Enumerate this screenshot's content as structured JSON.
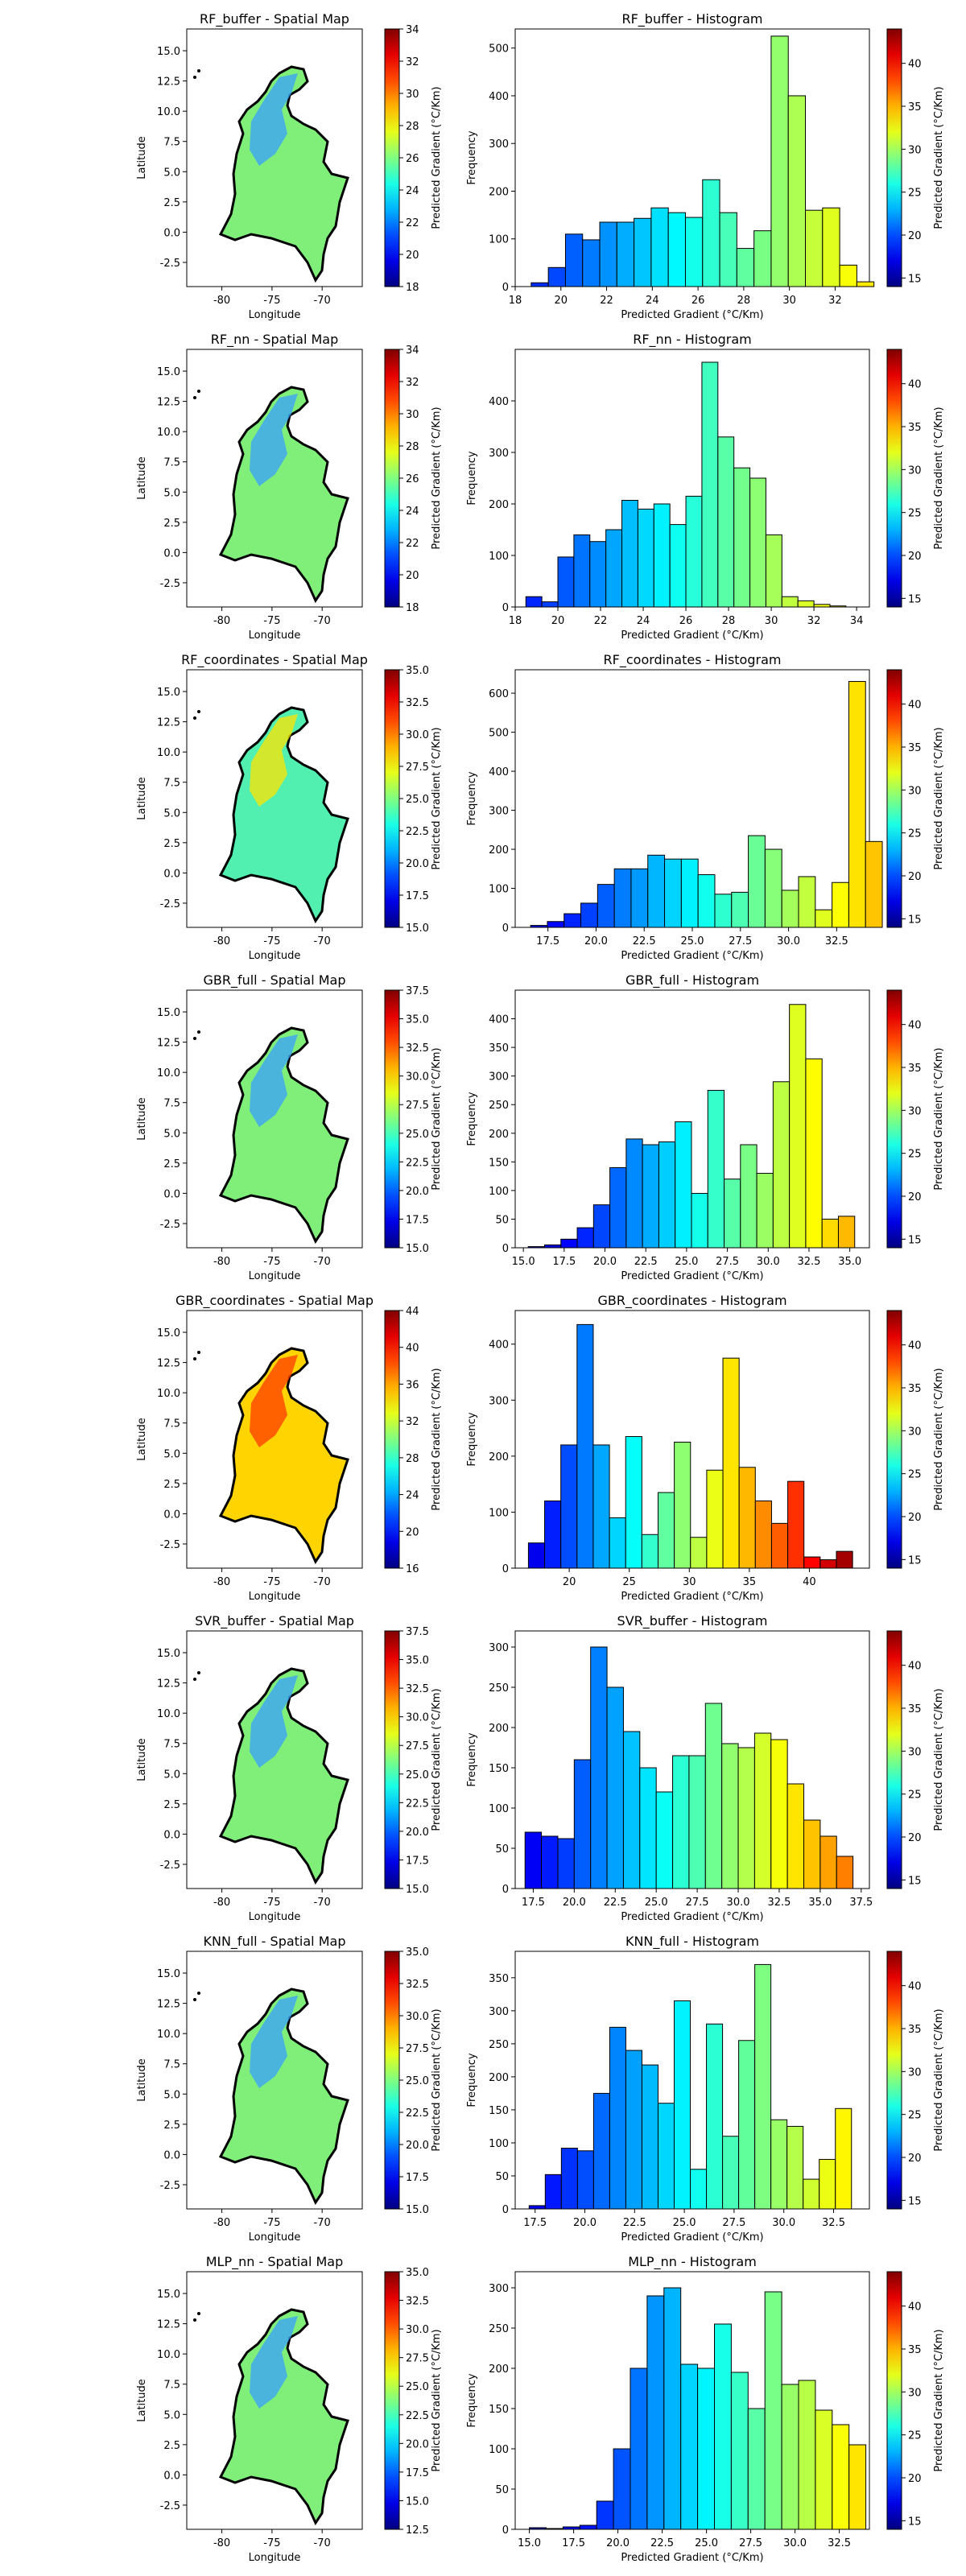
{
  "chart_data": [
    {
      "type": "heatmap",
      "title": "RF_buffer - Spatial Map",
      "xlabel": "Longitude",
      "ylabel": "Latitude",
      "xticks": [
        "-80",
        "-75",
        "-70"
      ],
      "yticks": [
        "-2.5",
        "0.0",
        "2.5",
        "5.0",
        "7.5",
        "10.0",
        "12.5",
        "15.0"
      ],
      "colorbar": {
        "label": "Predicted Gradient (°C/Km)",
        "ticks": [
          "18",
          "20",
          "22",
          "24",
          "26",
          "28",
          "30",
          "32",
          "34"
        ],
        "range": [
          18,
          34
        ]
      },
      "dominant_color": "#7fef7a",
      "secondary_color": "#3aa0ff"
    },
    {
      "type": "bar",
      "title": "RF_buffer - Histogram",
      "xlabel": "Predicted Gradient (°C/Km)",
      "ylabel": "Frequency",
      "xlim": [
        18,
        33.5
      ],
      "ylim": [
        0,
        540
      ],
      "xticks": [
        "18",
        "20",
        "22",
        "24",
        "26",
        "28",
        "30",
        "32"
      ],
      "yticks": [
        "0",
        "100",
        "200",
        "300",
        "400",
        "500"
      ],
      "bin_start": 18.7,
      "bin_width": 0.75,
      "values": [
        8,
        40,
        110,
        98,
        135,
        135,
        143,
        165,
        155,
        145,
        224,
        155,
        80,
        117,
        525,
        400,
        160,
        165,
        45,
        10
      ],
      "colorbar": {
        "label": "Predicted Gradient (°C/Km)",
        "ticks": [
          "15",
          "20",
          "25",
          "30",
          "35",
          "40"
        ],
        "range": [
          14,
          44
        ]
      }
    },
    {
      "type": "heatmap",
      "title": "RF_nn - Spatial Map",
      "xlabel": "Longitude",
      "ylabel": "Latitude",
      "xticks": [
        "-80",
        "-75",
        "-70"
      ],
      "yticks": [
        "-2.5",
        "0.0",
        "2.5",
        "5.0",
        "7.5",
        "10.0",
        "12.5",
        "15.0"
      ],
      "colorbar": {
        "label": "Predicted Gradient (°C/Km)",
        "ticks": [
          "18",
          "20",
          "22",
          "24",
          "26",
          "28",
          "30",
          "32",
          "34"
        ],
        "range": [
          18,
          34
        ]
      },
      "dominant_color": "#7fef7a",
      "secondary_color": "#3aa0ff"
    },
    {
      "type": "bar",
      "title": "RF_nn - Histogram",
      "xlabel": "Predicted Gradient (°C/Km)",
      "ylabel": "Frequency",
      "xlim": [
        18,
        34.6
      ],
      "ylim": [
        0,
        500
      ],
      "xticks": [
        "18",
        "20",
        "22",
        "24",
        "26",
        "28",
        "30",
        "32",
        "34"
      ],
      "yticks": [
        "0",
        "100",
        "200",
        "300",
        "400"
      ],
      "bin_start": 18.5,
      "bin_width": 0.75,
      "values": [
        20,
        10,
        97,
        140,
        127,
        150,
        207,
        190,
        200,
        160,
        215,
        475,
        330,
        270,
        250,
        140,
        20,
        12,
        5,
        2
      ],
      "colorbar": {
        "label": "Predicted Gradient (°C/Km)",
        "ticks": [
          "15",
          "20",
          "25",
          "30",
          "35",
          "40"
        ],
        "range": [
          14,
          44
        ]
      }
    },
    {
      "type": "heatmap",
      "title": "RF_coordinates - Spatial Map",
      "xlabel": "Longitude",
      "ylabel": "Latitude",
      "xticks": [
        "-80",
        "-75",
        "-70"
      ],
      "yticks": [
        "-2.5",
        "0.0",
        "2.5",
        "5.0",
        "7.5",
        "10.0",
        "12.5",
        "15.0"
      ],
      "colorbar": {
        "label": "Predicted Gradient (°C/Km)",
        "ticks": [
          "15.0",
          "17.5",
          "20.0",
          "22.5",
          "25.0",
          "27.5",
          "30.0",
          "32.5",
          "35.0"
        ],
        "range": [
          15,
          35
        ]
      },
      "dominant_color": "#52f0b0",
      "secondary_color": "#ffe600"
    },
    {
      "type": "bar",
      "title": "RF_coordinates - Histogram",
      "xlabel": "Predicted Gradient (°C/Km)",
      "ylabel": "Frequency",
      "xlim": [
        15.8,
        34.2
      ],
      "ylim": [
        0,
        660
      ],
      "xticks": [
        "17.5",
        "20.0",
        "22.5",
        "25.0",
        "27.5",
        "30.0",
        "32.5"
      ],
      "yticks": [
        "0",
        "100",
        "200",
        "300",
        "400",
        "500",
        "600"
      ],
      "bin_start": 16.6,
      "bin_width": 0.87,
      "values": [
        5,
        15,
        35,
        62,
        110,
        150,
        150,
        185,
        175,
        175,
        135,
        85,
        90,
        235,
        200,
        95,
        130,
        45,
        115,
        630,
        220
      ],
      "colorbar": {
        "label": "Predicted Gradient (°C/Km)",
        "ticks": [
          "15",
          "20",
          "25",
          "30",
          "35",
          "40"
        ],
        "range": [
          14,
          44
        ]
      }
    },
    {
      "type": "heatmap",
      "title": "GBR_full - Spatial Map",
      "xlabel": "Longitude",
      "ylabel": "Latitude",
      "xticks": [
        "-80",
        "-75",
        "-70"
      ],
      "yticks": [
        "-2.5",
        "0.0",
        "2.5",
        "5.0",
        "7.5",
        "10.0",
        "12.5",
        "15.0"
      ],
      "colorbar": {
        "label": "Predicted Gradient (°C/Km)",
        "ticks": [
          "15.0",
          "17.5",
          "20.0",
          "22.5",
          "25.0",
          "27.5",
          "30.0",
          "32.5",
          "35.0",
          "37.5"
        ],
        "range": [
          15,
          37.5
        ]
      },
      "dominant_color": "#7fef7a",
      "secondary_color": "#3aa0ff"
    },
    {
      "type": "bar",
      "title": "GBR_full - Histogram",
      "xlabel": "Predicted Gradient (°C/Km)",
      "ylabel": "Frequency",
      "xlim": [
        14.5,
        36.2
      ],
      "ylim": [
        0,
        450
      ],
      "xticks": [
        "15.0",
        "17.5",
        "20.0",
        "22.5",
        "25.0",
        "27.5",
        "30.0",
        "32.5",
        "35.0"
      ],
      "yticks": [
        "0",
        "50",
        "100",
        "150",
        "200",
        "250",
        "300",
        "350",
        "400"
      ],
      "bin_start": 15.3,
      "bin_width": 1.0,
      "values": [
        2,
        5,
        15,
        35,
        75,
        140,
        190,
        180,
        185,
        220,
        95,
        275,
        120,
        180,
        130,
        290,
        425,
        330,
        50,
        55
      ],
      "colorbar": {
        "label": "Predicted Gradient (°C/Km)",
        "ticks": [
          "15",
          "20",
          "25",
          "30",
          "35",
          "40"
        ],
        "range": [
          14,
          44
        ]
      }
    },
    {
      "type": "heatmap",
      "title": "GBR_coordinates - Spatial Map",
      "xlabel": "Longitude",
      "ylabel": "Latitude",
      "xticks": [
        "-80",
        "-75",
        "-70"
      ],
      "yticks": [
        "-2.5",
        "0.0",
        "2.5",
        "5.0",
        "7.5",
        "10.0",
        "12.5",
        "15.0"
      ],
      "colorbar": {
        "label": "Predicted Gradient (°C/Km)",
        "ticks": [
          "16",
          "20",
          "24",
          "28",
          "32",
          "36",
          "40",
          "44"
        ],
        "range": [
          16,
          44
        ]
      },
      "dominant_color": "#ffd400",
      "secondary_color": "#ff3a00"
    },
    {
      "type": "bar",
      "title": "GBR_coordinates - Histogram",
      "xlabel": "Predicted Gradient (°C/Km)",
      "ylabel": "Frequency",
      "xlim": [
        15.5,
        45.0
      ],
      "ylim": [
        0,
        460
      ],
      "xticks": [
        "20",
        "25",
        "30",
        "35",
        "40"
      ],
      "yticks": [
        "0",
        "100",
        "200",
        "300",
        "400"
      ],
      "bin_start": 16.6,
      "bin_width": 1.35,
      "values": [
        45,
        120,
        220,
        435,
        220,
        90,
        235,
        60,
        135,
        225,
        55,
        175,
        375,
        180,
        120,
        80,
        155,
        20,
        15,
        30
      ],
      "colorbar": {
        "label": "Predicted Gradient (°C/Km)",
        "ticks": [
          "15",
          "20",
          "25",
          "30",
          "35",
          "40"
        ],
        "range": [
          14,
          44
        ]
      }
    },
    {
      "type": "heatmap",
      "title": "SVR_buffer - Spatial Map",
      "xlabel": "Longitude",
      "ylabel": "Latitude",
      "xticks": [
        "-80",
        "-75",
        "-70"
      ],
      "yticks": [
        "-2.5",
        "0.0",
        "2.5",
        "5.0",
        "7.5",
        "10.0",
        "12.5",
        "15.0"
      ],
      "colorbar": {
        "label": "Predicted Gradient (°C/Km)",
        "ticks": [
          "15.0",
          "17.5",
          "20.0",
          "22.5",
          "25.0",
          "27.5",
          "30.0",
          "32.5",
          "35.0",
          "37.5"
        ],
        "range": [
          15,
          37.5
        ]
      },
      "dominant_color": "#7fef7a",
      "secondary_color": "#3aa0ff"
    },
    {
      "type": "bar",
      "title": "SVR_buffer - Histogram",
      "xlabel": "Predicted Gradient (°C/Km)",
      "ylabel": "Frequency",
      "xlim": [
        16.4,
        38.0
      ],
      "ylim": [
        0,
        320
      ],
      "xticks": [
        "17.5",
        "20.0",
        "22.5",
        "25.0",
        "27.5",
        "30.0",
        "32.5",
        "35.0",
        "37.5"
      ],
      "yticks": [
        "0",
        "50",
        "100",
        "150",
        "200",
        "250",
        "300"
      ],
      "bin_start": 17.0,
      "bin_width": 1.0,
      "values": [
        70,
        65,
        62,
        160,
        300,
        250,
        195,
        150,
        120,
        165,
        165,
        230,
        180,
        175,
        193,
        185,
        130,
        85,
        65,
        40
      ],
      "colorbar": {
        "label": "Predicted Gradient (°C/Km)",
        "ticks": [
          "15",
          "20",
          "25",
          "30",
          "35",
          "40"
        ],
        "range": [
          14,
          44
        ]
      }
    },
    {
      "type": "heatmap",
      "title": "KNN_full - Spatial Map",
      "xlabel": "Longitude",
      "ylabel": "Latitude",
      "xticks": [
        "-80",
        "-75",
        "-70"
      ],
      "yticks": [
        "-2.5",
        "0.0",
        "2.5",
        "5.0",
        "7.5",
        "10.0",
        "12.5",
        "15.0"
      ],
      "colorbar": {
        "label": "Predicted Gradient (°C/Km)",
        "ticks": [
          "15.0",
          "17.5",
          "20.0",
          "22.5",
          "25.0",
          "27.5",
          "30.0",
          "32.5",
          "35.0"
        ],
        "range": [
          15,
          35
        ]
      },
      "dominant_color": "#7fef7a",
      "secondary_color": "#3aa0ff"
    },
    {
      "type": "bar",
      "title": "KNN_full - Histogram",
      "xlabel": "Predicted Gradient (°C/Km)",
      "ylabel": "Frequency",
      "xlim": [
        16.5,
        34.3
      ],
      "ylim": [
        0,
        390
      ],
      "xticks": [
        "17.5",
        "20.0",
        "22.5",
        "25.0",
        "27.5",
        "30.0",
        "32.5"
      ],
      "yticks": [
        "0",
        "50",
        "100",
        "150",
        "200",
        "250",
        "300",
        "350"
      ],
      "bin_start": 17.2,
      "bin_width": 0.81,
      "values": [
        5,
        52,
        92,
        88,
        175,
        275,
        240,
        218,
        160,
        315,
        60,
        280,
        110,
        255,
        370,
        135,
        125,
        45,
        75,
        152
      ],
      "colorbar": {
        "label": "Predicted Gradient (°C/Km)",
        "ticks": [
          "15",
          "20",
          "25",
          "30",
          "35",
          "40"
        ],
        "range": [
          14,
          44
        ]
      }
    },
    {
      "type": "heatmap",
      "title": "MLP_nn - Spatial Map",
      "xlabel": "Longitude",
      "ylabel": "Latitude",
      "xticks": [
        "-80",
        "-75",
        "-70"
      ],
      "yticks": [
        "-2.5",
        "0.0",
        "2.5",
        "5.0",
        "7.5",
        "10.0",
        "12.5",
        "15.0"
      ],
      "colorbar": {
        "label": "Predicted Gradient (°C/Km)",
        "ticks": [
          "12.5",
          "15.0",
          "17.5",
          "20.0",
          "22.5",
          "25.0",
          "27.5",
          "30.0",
          "32.5",
          "35.0"
        ],
        "range": [
          12.5,
          35
        ]
      },
      "dominant_color": "#7fef7a",
      "secondary_color": "#3aa0ff"
    },
    {
      "type": "bar",
      "title": "MLP_nn - Histogram",
      "xlabel": "Predicted Gradient (°C/Km)",
      "ylabel": "Frequency",
      "xlim": [
        14.2,
        34.2
      ],
      "ylim": [
        0,
        320
      ],
      "xticks": [
        "15.0",
        "17.5",
        "20.0",
        "22.5",
        "25.0",
        "27.5",
        "30.0",
        "32.5"
      ],
      "yticks": [
        "0",
        "50",
        "100",
        "150",
        "200",
        "250",
        "300"
      ],
      "bin_start": 15.0,
      "bin_width": 0.95,
      "values": [
        2,
        1,
        3,
        5,
        35,
        100,
        200,
        290,
        300,
        205,
        200,
        255,
        195,
        150,
        295,
        180,
        185,
        148,
        130,
        105
      ],
      "colorbar": {
        "label": "Predicted Gradient (°C/Km)",
        "ticks": [
          "15",
          "20",
          "25",
          "30",
          "35",
          "40"
        ],
        "range": [
          14,
          44
        ]
      }
    }
  ]
}
